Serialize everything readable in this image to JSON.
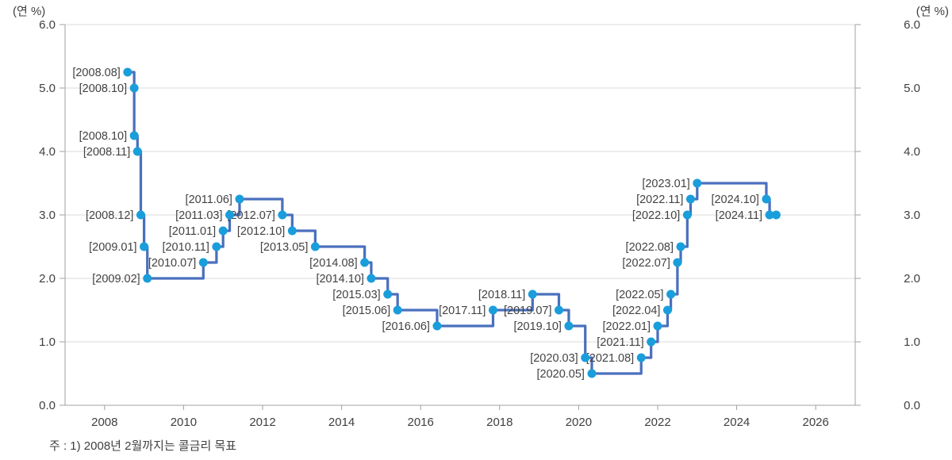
{
  "chart_data": {
    "type": "line",
    "subtype": "step-after",
    "title": "",
    "unit_label": "(연 %)",
    "note": "주 : 1) 2008년 2월까지는 콜금리 목표",
    "xlabel": "",
    "ylabel": "(연 %)",
    "xlim": [
      2007,
      2027
    ],
    "ylim": [
      0.0,
      6.0
    ],
    "grid": true,
    "legend": "none",
    "colors": {
      "line": "#4a70bd",
      "marker": "#1a9edb",
      "gridline": "#dbdbdb",
      "axis": "#a0a0a0",
      "text": "#404040"
    },
    "y_ticks": [
      {
        "value": 0,
        "label": "0.0"
      },
      {
        "value": 1,
        "label": "1.0"
      },
      {
        "value": 2,
        "label": "2.0"
      },
      {
        "value": 3,
        "label": "3.0"
      },
      {
        "value": 4,
        "label": "4.0"
      },
      {
        "value": 5,
        "label": "5.0"
      },
      {
        "value": 6,
        "label": "6.0"
      }
    ],
    "x_ticks": [
      {
        "value": 2008,
        "label": "2008"
      },
      {
        "value": 2010,
        "label": "2010"
      },
      {
        "value": 2012,
        "label": "2012"
      },
      {
        "value": 2014,
        "label": "2014"
      },
      {
        "value": 2016,
        "label": "2016"
      },
      {
        "value": 2018,
        "label": "2018"
      },
      {
        "value": 2020,
        "label": "2020"
      },
      {
        "value": 2022,
        "label": "2022"
      },
      {
        "value": 2024,
        "label": "2024"
      },
      {
        "value": 2026,
        "label": "2026"
      }
    ],
    "points": [
      {
        "label": "[2008.08]",
        "x": 2008.583,
        "value": 5.25
      },
      {
        "label": "[2008.10]",
        "x": 2008.75,
        "value": 5.0
      },
      {
        "label": "[2008.10]",
        "x": 2008.75,
        "value": 4.25
      },
      {
        "label": "[2008.11]",
        "x": 2008.833,
        "value": 4.0
      },
      {
        "label": "[2008.12]",
        "x": 2008.917,
        "value": 3.0
      },
      {
        "label": "[2009.01]",
        "x": 2009.0,
        "value": 2.5
      },
      {
        "label": "[2009.02]",
        "x": 2009.083,
        "value": 2.0
      },
      {
        "label": "[2010.07]",
        "x": 2010.5,
        "value": 2.25
      },
      {
        "label": "[2010.11]",
        "x": 2010.833,
        "value": 2.5
      },
      {
        "label": "[2011.01]",
        "x": 2011.0,
        "value": 2.75
      },
      {
        "label": "[2011.03]",
        "x": 2011.167,
        "value": 3.0
      },
      {
        "label": "[2011.06]",
        "x": 2011.417,
        "value": 3.25
      },
      {
        "label": "[2012.07]",
        "x": 2012.5,
        "value": 3.0
      },
      {
        "label": "[2012.10]",
        "x": 2012.75,
        "value": 2.75
      },
      {
        "label": "[2013.05]",
        "x": 2013.333,
        "value": 2.5
      },
      {
        "label": "[2014.08]",
        "x": 2014.583,
        "value": 2.25
      },
      {
        "label": "[2014.10]",
        "x": 2014.75,
        "value": 2.0
      },
      {
        "label": "[2015.03]",
        "x": 2015.167,
        "value": 1.75
      },
      {
        "label": "[2015.06]",
        "x": 2015.417,
        "value": 1.5
      },
      {
        "label": "[2016.06]",
        "x": 2016.417,
        "value": 1.25
      },
      {
        "label": "[2017.11]",
        "x": 2017.833,
        "value": 1.5
      },
      {
        "label": "[2018.11]",
        "x": 2018.833,
        "value": 1.75
      },
      {
        "label": "[2019.07]",
        "x": 2019.5,
        "value": 1.5
      },
      {
        "label": "[2019.10]",
        "x": 2019.75,
        "value": 1.25
      },
      {
        "label": "[2020.03]",
        "x": 2020.167,
        "value": 0.75
      },
      {
        "label": "[2020.05]",
        "x": 2020.333,
        "value": 0.5
      },
      {
        "label": "[2021.08]",
        "x": 2021.583,
        "value": 0.75
      },
      {
        "label": "[2021.11]",
        "x": 2021.833,
        "value": 1.0
      },
      {
        "label": "[2022.01]",
        "x": 2022.0,
        "value": 1.25
      },
      {
        "label": "[2022.04]",
        "x": 2022.25,
        "value": 1.5
      },
      {
        "label": "[2022.05]",
        "x": 2022.333,
        "value": 1.75
      },
      {
        "label": "[2022.07]",
        "x": 2022.5,
        "value": 2.25
      },
      {
        "label": "[2022.08]",
        "x": 2022.583,
        "value": 2.5
      },
      {
        "label": "[2022.10]",
        "x": 2022.75,
        "value": 3.0
      },
      {
        "label": "[2022.11]",
        "x": 2022.833,
        "value": 3.25
      },
      {
        "label": "[2023.01]",
        "x": 2023.0,
        "value": 3.5
      },
      {
        "label": "[2024.10]",
        "x": 2024.75,
        "value": 3.25
      },
      {
        "label": "[2024.11]",
        "x": 2024.833,
        "value": 3.0
      }
    ],
    "series_end": {
      "x": 2025.0,
      "value": 3.0
    }
  }
}
